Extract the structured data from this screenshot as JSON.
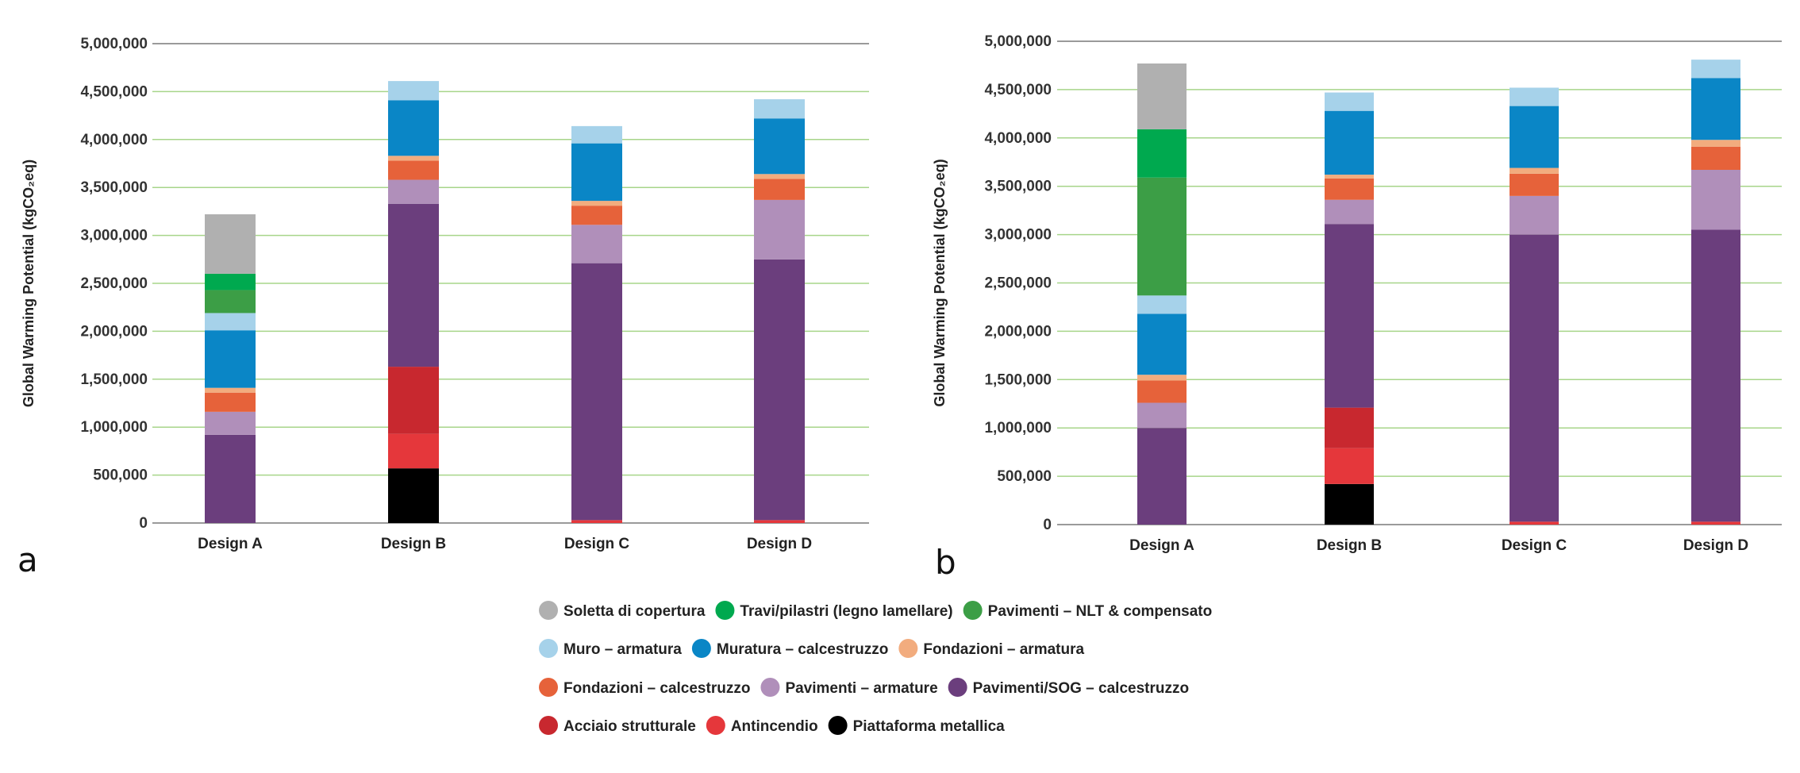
{
  "legend_items": [
    {
      "label": "Soletta di copertura",
      "color": "#b0b0b0"
    },
    {
      "label": "Travi/pilastri (legno lamellare)",
      "color": "#00a94f"
    },
    {
      "label": "Pavimenti – NLT & compensato",
      "color": "#3c9e46"
    },
    {
      "label": "Muro – armatura",
      "color": "#a6d2ea"
    },
    {
      "label": "Muratura – calcestruzzo",
      "color": "#0a86c6"
    },
    {
      "label": "Fondazioni – armatura",
      "color": "#f2ac7e"
    },
    {
      "label": "Fondazioni – calcestruzzo",
      "color": "#e6623a"
    },
    {
      "label": "Pavimenti – armature",
      "color": "#b08fba"
    },
    {
      "label": "Pavimenti/SOG – calcestruzzo",
      "color": "#6b3e7d"
    },
    {
      "label": "Acciaio strutturale",
      "color": "#c8282f"
    },
    {
      "label": "Antincendio",
      "color": "#e5373b"
    },
    {
      "label": "Piattaforma metallica",
      "color": "#000000"
    }
  ],
  "chart_data": [
    {
      "panel_label": "a",
      "type": "bar",
      "stacked": true,
      "ylabel": "Global Warming Potential (kgCO₂eq)",
      "ylim": [
        0,
        5000000
      ],
      "yticks": [
        "0",
        "500,000",
        "1,000,000",
        "1,500,000",
        "2,000,000",
        "2,500,000",
        "3,000,000",
        "3,500,000",
        "4,000,000",
        "4,500,000",
        "5,000,000"
      ],
      "categories": [
        "Design A",
        "Design B",
        "Design C",
        "Design D"
      ],
      "grid": true,
      "series": [
        {
          "name": "Piattaforma metallica",
          "values": [
            0,
            570000,
            0,
            0
          ]
        },
        {
          "name": "Antincendio",
          "values": [
            0,
            360000,
            30000,
            30000
          ]
        },
        {
          "name": "Acciaio strutturale",
          "values": [
            0,
            700000,
            0,
            0
          ]
        },
        {
          "name": "Pavimenti/SOG – calcestruzzo",
          "values": [
            920000,
            1700000,
            2680000,
            2720000
          ]
        },
        {
          "name": "Pavimenti – armature",
          "values": [
            240000,
            250000,
            400000,
            620000
          ]
        },
        {
          "name": "Fondazioni – calcestruzzo",
          "values": [
            200000,
            200000,
            200000,
            220000
          ]
        },
        {
          "name": "Fondazioni – armatura",
          "values": [
            50000,
            50000,
            50000,
            50000
          ]
        },
        {
          "name": "Muratura – calcestruzzo",
          "values": [
            600000,
            580000,
            600000,
            580000
          ]
        },
        {
          "name": "Muro – armatura",
          "values": [
            180000,
            200000,
            180000,
            200000
          ]
        },
        {
          "name": "Pavimenti – NLT & compensato",
          "values": [
            240000,
            0,
            0,
            0
          ]
        },
        {
          "name": "Travi/pilastri (legno lamellare)",
          "values": [
            170000,
            0,
            0,
            0
          ]
        },
        {
          "name": "Soletta di copertura",
          "values": [
            620000,
            0,
            0,
            0
          ]
        }
      ]
    },
    {
      "panel_label": "b",
      "type": "bar",
      "stacked": true,
      "ylabel": "Global Warming Potential (kgCO₂eq)",
      "ylim": [
        0,
        5000000
      ],
      "yticks": [
        "0",
        "500,000",
        "1,000,000",
        "1,500,000",
        "2,000,000",
        "2,500,000",
        "3,000,000",
        "3,500,000",
        "4,000,000",
        "4,500,000",
        "5,000,000"
      ],
      "categories": [
        "Design A",
        "Design B",
        "Design C",
        "Design D"
      ],
      "grid": true,
      "series": [
        {
          "name": "Piattaforma metallica",
          "values": [
            0,
            420000,
            0,
            0
          ]
        },
        {
          "name": "Antincendio",
          "values": [
            0,
            370000,
            30000,
            30000
          ]
        },
        {
          "name": "Acciaio strutturale",
          "values": [
            0,
            420000,
            0,
            0
          ]
        },
        {
          "name": "Pavimenti/SOG – calcestruzzo",
          "values": [
            1000000,
            1900000,
            2970000,
            3020000
          ]
        },
        {
          "name": "Pavimenti – armature",
          "values": [
            260000,
            250000,
            400000,
            620000
          ]
        },
        {
          "name": "Fondazioni – calcestruzzo",
          "values": [
            230000,
            220000,
            230000,
            240000
          ]
        },
        {
          "name": "Fondazioni – armatura",
          "values": [
            60000,
            40000,
            60000,
            70000
          ]
        },
        {
          "name": "Muratura – calcestruzzo",
          "values": [
            630000,
            660000,
            640000,
            640000
          ]
        },
        {
          "name": "Muro – armatura",
          "values": [
            190000,
            190000,
            190000,
            190000
          ]
        },
        {
          "name": "Pavimenti – NLT & compensato",
          "values": [
            1220000,
            0,
            0,
            0
          ]
        },
        {
          "name": "Travi/pilastri (legno lamellare)",
          "values": [
            500000,
            0,
            0,
            0
          ]
        },
        {
          "name": "Soletta di copertura",
          "values": [
            680000,
            0,
            0,
            0
          ]
        }
      ]
    }
  ]
}
